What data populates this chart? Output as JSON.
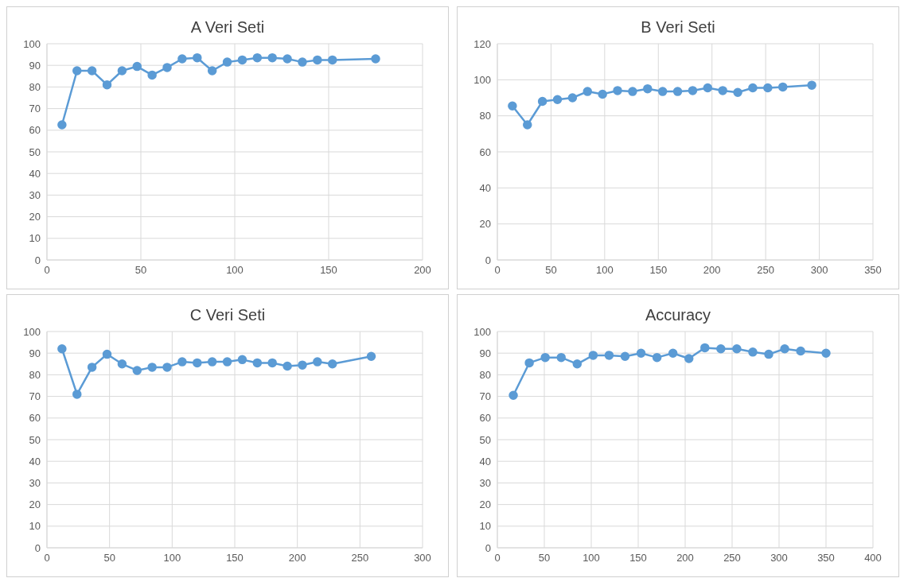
{
  "chart_data": [
    {
      "type": "line",
      "title": "A Veri Seti",
      "x": [
        8,
        16,
        24,
        32,
        40,
        48,
        56,
        64,
        72,
        80,
        88,
        96,
        104,
        112,
        120,
        128,
        136,
        144,
        152,
        175
      ],
      "values": [
        62.5,
        87.5,
        87.5,
        81,
        87.5,
        89.5,
        85.5,
        89,
        93,
        93.5,
        87.5,
        91.5,
        92.5,
        93.5,
        93.5,
        93,
        91.5,
        92.5,
        92.5,
        93
      ],
      "color": "#5b9bd5",
      "xlim": [
        0,
        200
      ],
      "xticks": [
        0,
        50,
        100,
        150,
        200
      ],
      "ylim": [
        0,
        100
      ],
      "yticks": [
        0,
        10,
        20,
        30,
        40,
        50,
        60,
        70,
        80,
        90,
        100
      ],
      "grid": true,
      "marker": "circle"
    },
    {
      "type": "line",
      "title": "B Veri Seti",
      "x": [
        14,
        28,
        42,
        56,
        70,
        84,
        98,
        112,
        126,
        140,
        154,
        168,
        182,
        196,
        210,
        224,
        238,
        252,
        266,
        293
      ],
      "values": [
        85.5,
        75,
        88,
        89,
        90,
        93.5,
        92,
        94,
        93.5,
        95,
        93.5,
        93.5,
        94,
        95.5,
        94,
        93,
        95.5,
        95.5,
        96,
        97
      ],
      "color": "#5b9bd5",
      "xlim": [
        0,
        350
      ],
      "xticks": [
        0,
        50,
        100,
        150,
        200,
        250,
        300,
        350
      ],
      "ylim": [
        0,
        120
      ],
      "yticks": [
        0,
        20,
        40,
        60,
        80,
        100,
        120
      ],
      "grid": true,
      "marker": "circle"
    },
    {
      "type": "line",
      "title": "C Veri Seti",
      "x": [
        12,
        24,
        36,
        48,
        60,
        72,
        84,
        96,
        108,
        120,
        132,
        144,
        156,
        168,
        180,
        192,
        204,
        216,
        228,
        259
      ],
      "values": [
        92,
        71,
        83.5,
        89.5,
        85,
        82,
        83.5,
        83.5,
        86,
        85.5,
        86,
        86,
        87,
        85.5,
        85.5,
        84,
        84.5,
        86,
        85,
        88.5
      ],
      "color": "#5b9bd5",
      "xlim": [
        0,
        300
      ],
      "xticks": [
        0,
        50,
        100,
        150,
        200,
        250,
        300
      ],
      "ylim": [
        0,
        100
      ],
      "yticks": [
        0,
        10,
        20,
        30,
        40,
        50,
        60,
        70,
        80,
        90,
        100
      ],
      "grid": true,
      "marker": "circle"
    },
    {
      "type": "line",
      "title": "Accuracy",
      "x": [
        17,
        34,
        51,
        68,
        85,
        102,
        119,
        136,
        153,
        170,
        187,
        204,
        221,
        238,
        255,
        272,
        289,
        306,
        323,
        350
      ],
      "values": [
        70.5,
        85.5,
        88,
        88,
        85,
        89,
        89,
        88.5,
        90,
        88,
        90,
        87.5,
        92.5,
        92,
        92,
        90.5,
        89.5,
        92,
        91,
        90
      ],
      "color": "#5b9bd5",
      "xlim": [
        0,
        400
      ],
      "xticks": [
        0,
        50,
        100,
        150,
        200,
        250,
        300,
        350,
        400
      ],
      "ylim": [
        0,
        100
      ],
      "yticks": [
        0,
        10,
        20,
        30,
        40,
        50,
        60,
        70,
        80,
        90,
        100
      ],
      "grid": true,
      "marker": "circle"
    }
  ]
}
